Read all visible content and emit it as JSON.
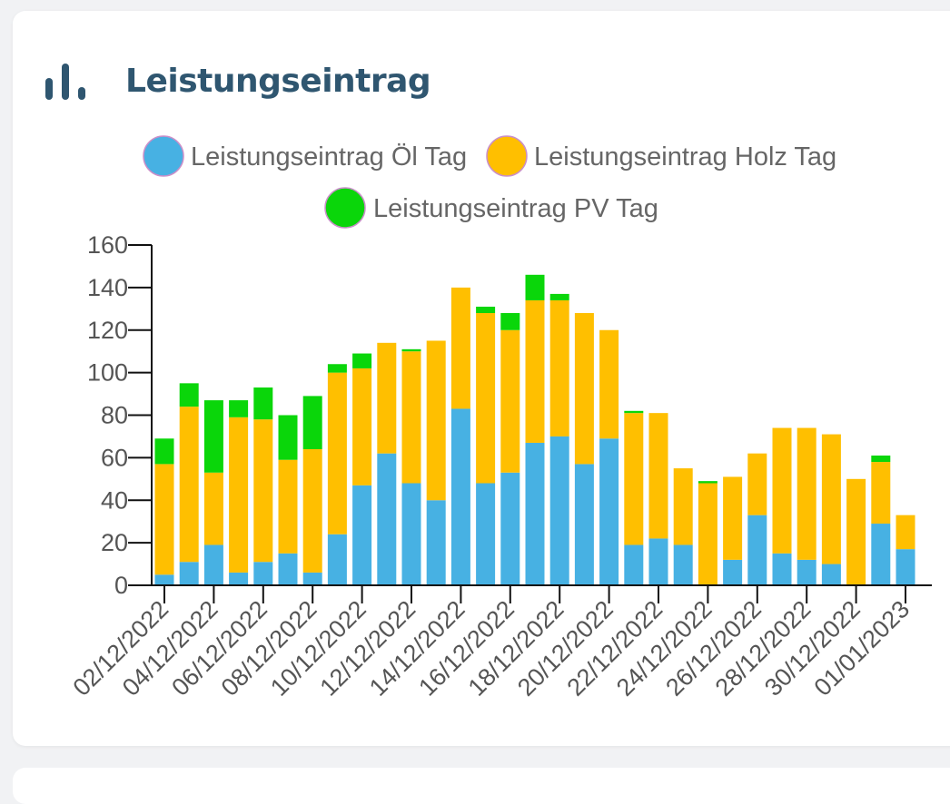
{
  "card": {
    "title": "Leistungseintrag",
    "icon": "bar-chart-icon"
  },
  "chart_data": {
    "type": "bar",
    "stacked": true,
    "categories": [
      "02/12/2022",
      "03/12/2022",
      "04/12/2022",
      "05/12/2022",
      "06/12/2022",
      "07/12/2022",
      "08/12/2022",
      "09/12/2022",
      "10/12/2022",
      "11/12/2022",
      "12/12/2022",
      "13/12/2022",
      "14/12/2022",
      "15/12/2022",
      "16/12/2022",
      "17/12/2022",
      "18/12/2022",
      "19/12/2022",
      "20/12/2022",
      "21/12/2022",
      "22/12/2022",
      "23/12/2022",
      "24/12/2022",
      "25/12/2022",
      "26/12/2022",
      "27/12/2022",
      "28/12/2022",
      "29/12/2022",
      "30/12/2022",
      "31/12/2022",
      "01/01/2023",
      "02/01/2023"
    ],
    "x_tick_labels": [
      "02/12/2022",
      "04/12/2022",
      "06/12/2022",
      "08/12/2022",
      "10/12/2022",
      "12/12/2022",
      "14/12/2022",
      "16/12/2022",
      "18/12/2022",
      "20/12/2022",
      "22/12/2022",
      "24/12/2022",
      "26/12/2022",
      "28/12/2022",
      "30/12/2022",
      "01/01/2023"
    ],
    "series": [
      {
        "name": "Leistungseintrag Öl Tag",
        "color": "#47b1e3",
        "values": [
          5,
          11,
          19,
          6,
          11,
          15,
          6,
          24,
          47,
          62,
          48,
          40,
          83,
          48,
          53,
          67,
          70,
          57,
          69,
          19,
          22,
          19,
          0,
          12,
          33,
          15,
          12,
          10,
          0,
          29,
          17,
          0
        ]
      },
      {
        "name": "Leistungseintrag Holz Tag",
        "color": "#ffbf00",
        "values": [
          52,
          73,
          34,
          73,
          67,
          44,
          58,
          76,
          55,
          52,
          62,
          75,
          57,
          80,
          67,
          67,
          64,
          71,
          51,
          62,
          59,
          36,
          48,
          39,
          29,
          59,
          62,
          61,
          50,
          29,
          16,
          0
        ]
      },
      {
        "name": "Leistungseintrag PV Tag",
        "color": "#0ad60a",
        "values": [
          12,
          11,
          34,
          8,
          15,
          21,
          25,
          4,
          7,
          0,
          1,
          0,
          0,
          3,
          8,
          12,
          3,
          0,
          0,
          1,
          0,
          0,
          1,
          0,
          0,
          0,
          0,
          0,
          0,
          3,
          0,
          0
        ]
      }
    ],
    "yticks": [
      0,
      20,
      40,
      60,
      80,
      100,
      120,
      140,
      160
    ],
    "ylim": [
      0,
      160
    ],
    "xlabel": "",
    "ylabel": "",
    "legend": "top-center"
  }
}
